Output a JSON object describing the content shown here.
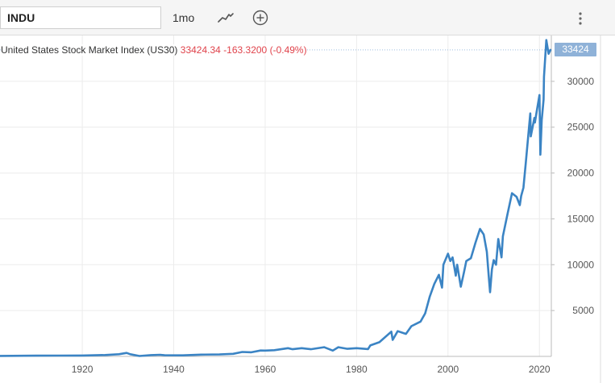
{
  "toolbar": {
    "symbol_value": "INDU",
    "period_label": "1mo",
    "chart_type_icon": "line-chart-icon",
    "add_icon": "plus-circle-icon",
    "menu_icon": "vertical-ellipsis-icon"
  },
  "legend": {
    "name": "United States Stock Market Index (US30)",
    "last": "33424.34",
    "change": "-163.3200",
    "change_pct": "(-0.49%)"
  },
  "price_tag": "33424",
  "colors": {
    "line": "#3b84c4",
    "negative": "#e0434b",
    "tag": "#8fb2d8"
  },
  "chart_data": {
    "type": "line",
    "title": "",
    "xlabel": "",
    "ylabel": "",
    "x_ticks": [
      "1920",
      "1940",
      "1960",
      "1980",
      "2000",
      "2020"
    ],
    "y_ticks": [
      "5000",
      "10000",
      "15000",
      "20000",
      "25000",
      "30000"
    ],
    "xlim": [
      1902,
      2022.6
    ],
    "ylim": [
      0,
      35000
    ],
    "y_axis_side": "right",
    "grid": true,
    "last_value": 33424,
    "series": [
      {
        "x": [
          1902,
          1910,
          1915,
          1920,
          1925,
          1928,
          1929.7,
          1930.5,
          1932.5,
          1935,
          1937,
          1938,
          1942,
          1946,
          1950,
          1953,
          1955,
          1957,
          1959,
          1960,
          1962,
          1965,
          1966,
          1968,
          1970,
          1972.9,
          1974.8,
          1976,
          1978,
          1980,
          1982.5,
          1983,
          1985,
          1987.6,
          1987.9,
          1989,
          1990.8,
          1992,
          1994,
          1995,
          1996,
          1997,
          1998,
          1998.7,
          1999,
          2000,
          2000.5,
          2001,
          2001.7,
          2002,
          2002.8,
          2003.5,
          2004,
          2005,
          2006,
          2007,
          2007.8,
          2008.5,
          2008.9,
          2009.2,
          2009.6,
          2010,
          2010.5,
          2011,
          2011.7,
          2012,
          2013,
          2014,
          2015,
          2015.7,
          2016,
          2016.5,
          2017,
          2018,
          2018.1,
          2018.9,
          2019,
          2019.5,
          2020,
          2020.2,
          2020.5,
          2020.9,
          2021,
          2021.5,
          2022,
          2022.4
        ],
        "y": [
          50,
          80,
          90,
          100,
          150,
          240,
          380,
          240,
          45,
          140,
          180,
          120,
          110,
          190,
          210,
          280,
          480,
          450,
          640,
          630,
          680,
          900,
          780,
          900,
          780,
          1000,
          630,
          1000,
          830,
          900,
          800,
          1200,
          1550,
          2700,
          1800,
          2750,
          2450,
          3300,
          3800,
          4700,
          6500,
          7900,
          8900,
          7500,
          10000,
          11200,
          10400,
          10800,
          8800,
          10000,
          7600,
          9200,
          10400,
          10700,
          12400,
          13900,
          13300,
          11400,
          8800,
          7000,
          9500,
          10500,
          10000,
          12800,
          10800,
          13100,
          15500,
          17800,
          17400,
          16500,
          17500,
          18400,
          21000,
          26500,
          24000,
          26000,
          25500,
          27000,
          28500,
          22000,
          25800,
          28000,
          30500,
          34500,
          33000,
          33424
        ]
      }
    ]
  }
}
